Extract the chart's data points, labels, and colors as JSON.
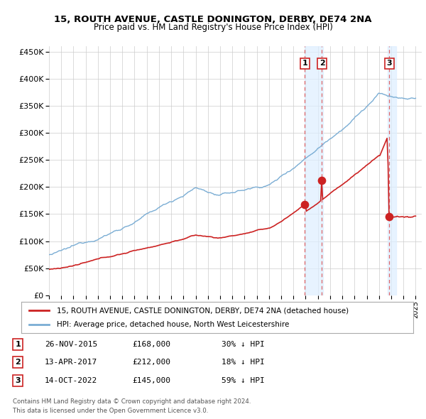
{
  "title": "15, ROUTH AVENUE, CASTLE DONINGTON, DERBY, DE74 2NA",
  "subtitle": "Price paid vs. HM Land Registry's House Price Index (HPI)",
  "ylim": [
    0,
    460000
  ],
  "yticks": [
    0,
    50000,
    100000,
    150000,
    200000,
    250000,
    300000,
    350000,
    400000,
    450000
  ],
  "ytick_labels": [
    "£0",
    "£50K",
    "£100K",
    "£150K",
    "£200K",
    "£250K",
    "£300K",
    "£350K",
    "£400K",
    "£450K"
  ],
  "xlim_start": 1995,
  "xlim_end": 2025.5,
  "hpi_color": "#7aadd4",
  "price_color": "#cc2222",
  "vline_color": "#dd4444",
  "shade_color": "#ddeeff",
  "legend_label_price": "15, ROUTH AVENUE, CASTLE DONINGTON, DERBY, DE74 2NA (detached house)",
  "legend_label_hpi": "HPI: Average price, detached house, North West Leicestershire",
  "sales": [
    {
      "num": 1,
      "date_str": "26-NOV-2015",
      "price": 168000,
      "pct": "30%",
      "x_year": 2015.9
    },
    {
      "num": 2,
      "date_str": "13-APR-2017",
      "price": 212000,
      "pct": "18%",
      "x_year": 2017.3
    },
    {
      "num": 3,
      "date_str": "14-OCT-2022",
      "price": 145000,
      "pct": "59%",
      "x_year": 2022.8
    }
  ],
  "footer1": "Contains HM Land Registry data © Crown copyright and database right 2024.",
  "footer2": "This data is licensed under the Open Government Licence v3.0.",
  "background_color": "#ffffff",
  "grid_color": "#cccccc"
}
